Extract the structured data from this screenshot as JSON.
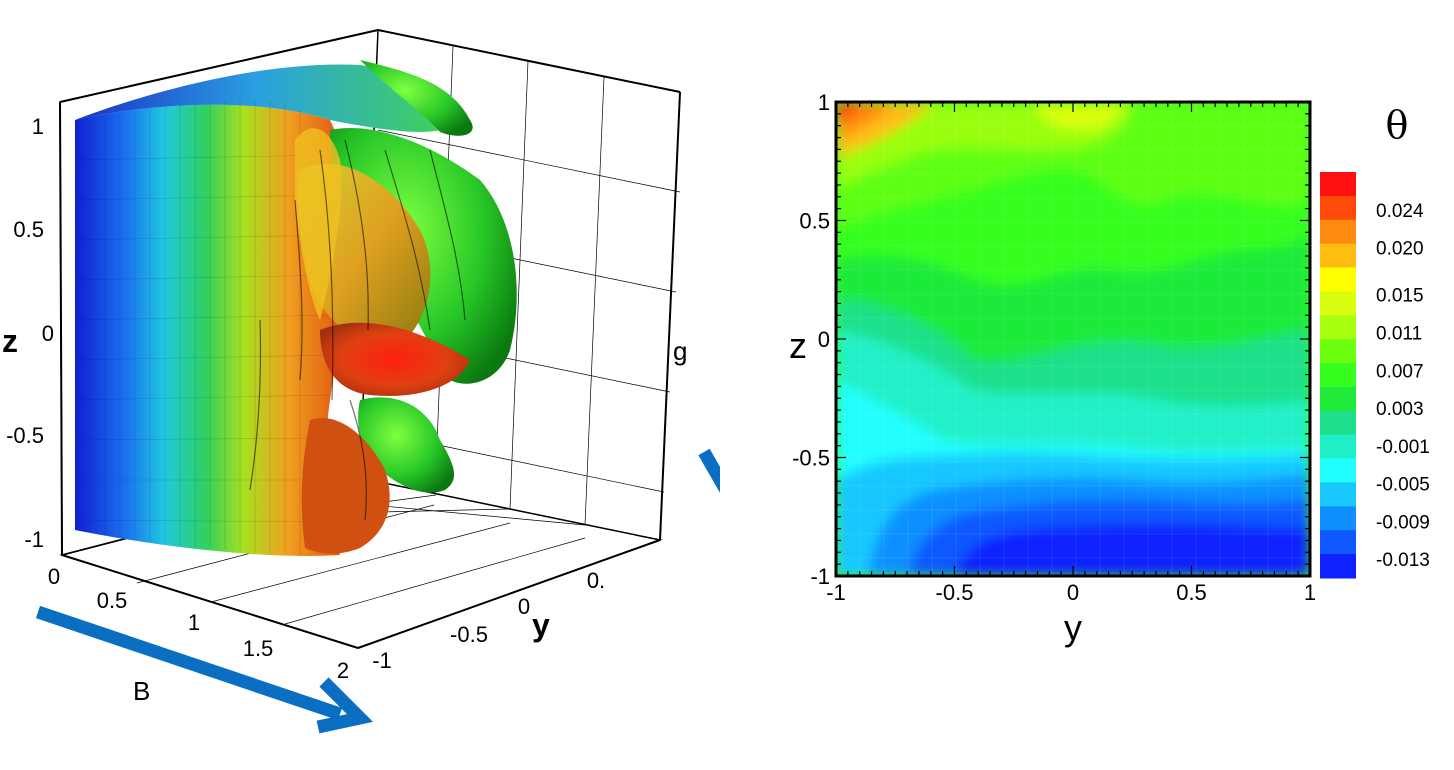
{
  "left_panel": {
    "z_ticks": [
      "1",
      "0.5",
      "0",
      "-0.5",
      "-1"
    ],
    "z_label": "z",
    "x_ticks": [
      "0",
      "0.5",
      "1",
      "1.5",
      "2"
    ],
    "y_ticks": [
      "-1",
      "-0.5",
      "0",
      "0."
    ],
    "y_label": "y",
    "arrow_g_label": "g",
    "arrow_B_label": "B",
    "arrow_color": "#0a6fc2"
  },
  "chart_data": {
    "type": "heatmap",
    "x": [
      -1,
      -0.5,
      0,
      0.5,
      1
    ],
    "y": [
      -1,
      -0.5,
      0,
      0.5,
      1
    ],
    "xlabel": "y",
    "ylabel": "z",
    "xlim": [
      -1,
      1
    ],
    "ylim": [
      -1,
      1
    ],
    "x_ticks": [
      "-1",
      "-0.5",
      "0",
      "0.5",
      "1"
    ],
    "y_ticks": [
      "-1",
      "-0.5",
      "0",
      "0.5",
      "1"
    ],
    "colorbar_title": "θ",
    "colorbar_ticks": [
      "0.024",
      "0.020",
      "0.015",
      "0.011",
      "0.007",
      "0.003",
      "-0.001",
      "-0.005",
      "-0.009",
      "-0.013"
    ],
    "colorbar_range": [
      -0.015,
      0.028
    ],
    "colorbar_levels": [
      "#ff1010",
      "#ff4a0a",
      "#ff8a10",
      "#ffbd12",
      "#ffff00",
      "#d8ff10",
      "#a8ff10",
      "#6cff10",
      "#36ff20",
      "#1fea3a",
      "#1fe08a",
      "#20f0c8",
      "#20ffff",
      "#18c8ff",
      "#1090ff",
      "#1058ff",
      "#1020ff"
    ]
  }
}
